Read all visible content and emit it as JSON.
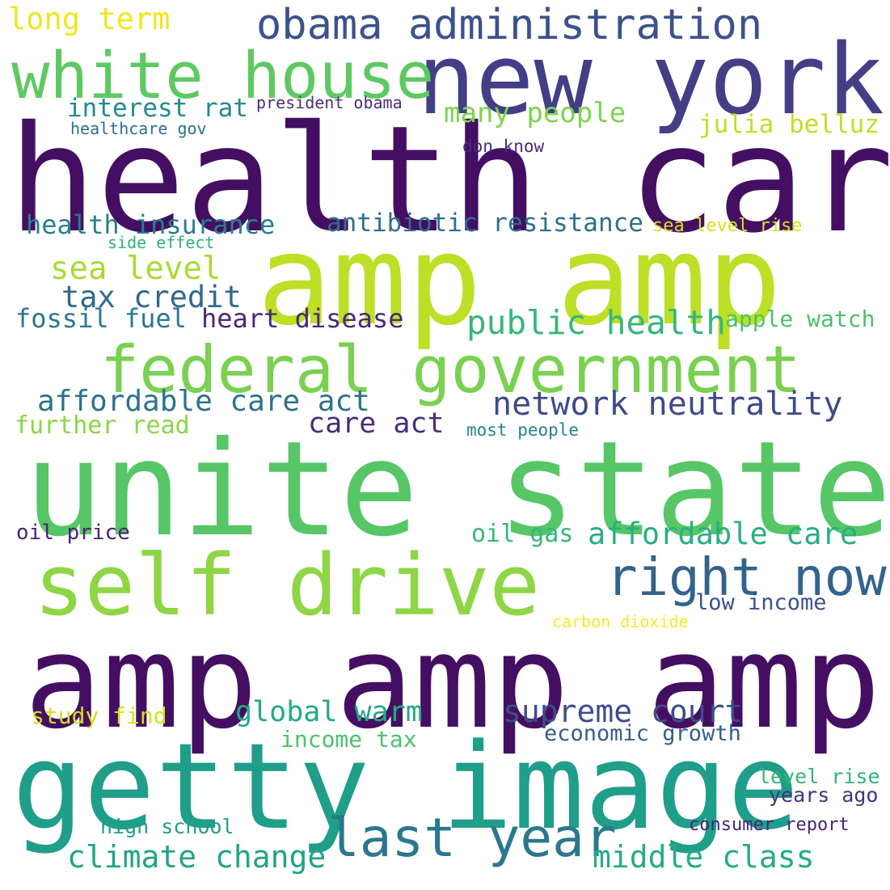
{
  "words": [
    {
      "text": "health care",
      "color": "#440f62"
    },
    {
      "text": "unite state",
      "color": "#56c667"
    },
    {
      "text": "amp amp amp",
      "color": "#440f62"
    },
    {
      "text": "amp amp",
      "color": "#bddf26"
    },
    {
      "text": "getty image",
      "color": "#1f9e89"
    },
    {
      "text": "new york",
      "color": "#433e85"
    },
    {
      "text": "self drive",
      "color": "#8ed645"
    },
    {
      "text": "federal government",
      "color": "#7ad151"
    },
    {
      "text": "white house",
      "color": "#5ec962"
    },
    {
      "text": "right now",
      "color": "#33638d"
    },
    {
      "text": "last year",
      "color": "#2a788e"
    },
    {
      "text": "obama administration",
      "color": "#3b528b"
    },
    {
      "text": "network neutrality",
      "color": "#3e4a89"
    },
    {
      "text": "affordable care act",
      "color": "#2c728e"
    },
    {
      "text": "affordable care",
      "color": "#29af7f"
    },
    {
      "text": "public health",
      "color": "#35b779"
    },
    {
      "text": "climate change",
      "color": "#20a486"
    },
    {
      "text": "middle class",
      "color": "#25ac82"
    },
    {
      "text": "supreme court",
      "color": "#3d4d8a"
    },
    {
      "text": "global warm",
      "color": "#23a983"
    },
    {
      "text": "heart disease",
      "color": "#482878"
    },
    {
      "text": "tax credit",
      "color": "#306a8e"
    },
    {
      "text": "sea level",
      "color": "#a8db34"
    },
    {
      "text": "health insurance",
      "color": "#277f8e"
    },
    {
      "text": "antibiotic resistance",
      "color": "#2e6f8e"
    },
    {
      "text": "interest rat",
      "color": "#238a8d"
    },
    {
      "text": "many people",
      "color": "#7fd34e"
    },
    {
      "text": "julia belluz",
      "color": "#c0df25"
    },
    {
      "text": "long term",
      "color": "#f1e51d"
    },
    {
      "text": "fossil fuel",
      "color": "#2a788e"
    },
    {
      "text": "apple watch",
      "color": "#4ac16d"
    },
    {
      "text": "care act",
      "color": "#472d7b"
    },
    {
      "text": "further read",
      "color": "#8bd646"
    },
    {
      "text": "most people",
      "color": "#26828e"
    },
    {
      "text": "oil price",
      "color": "#482475"
    },
    {
      "text": "oil gas",
      "color": "#37b878"
    },
    {
      "text": "low income",
      "color": "#3b528b"
    },
    {
      "text": "carbon dioxide",
      "color": "#fde725"
    },
    {
      "text": "study find",
      "color": "#d2e21b"
    },
    {
      "text": "income tax",
      "color": "#4cc26c"
    },
    {
      "text": "economic growth",
      "color": "#355f8d"
    },
    {
      "text": "level rise",
      "color": "#31b57b"
    },
    {
      "text": "years ago",
      "color": "#46337e"
    },
    {
      "text": "high school",
      "color": "#1fa187"
    },
    {
      "text": "consumer report",
      "color": "#482576"
    },
    {
      "text": "president obama",
      "color": "#472f7d"
    },
    {
      "text": "healthcare gov",
      "color": "#2d708e"
    },
    {
      "text": "don know",
      "color": "#472c7a"
    },
    {
      "text": "sea level rise",
      "color": "#d8e219"
    },
    {
      "text": "side effect",
      "color": "#2db27d"
    }
  ]
}
